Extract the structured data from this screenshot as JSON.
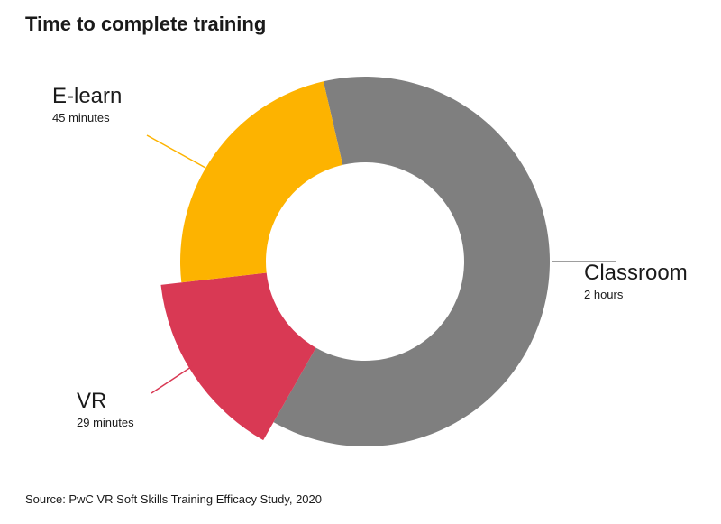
{
  "chart_data": {
    "type": "donut",
    "title": "Time to complete training",
    "categories": [
      "Classroom",
      "VR",
      "E-learn"
    ],
    "values": [
      120,
      29,
      45
    ],
    "value_labels": [
      "2 hours",
      "29 minutes",
      "45 minutes"
    ],
    "colors": [
      "#7f7f7f",
      "#d93954",
      "#fdb300"
    ],
    "source": "Source: PwC VR Soft Skills Training Efficacy Study, 2020"
  }
}
